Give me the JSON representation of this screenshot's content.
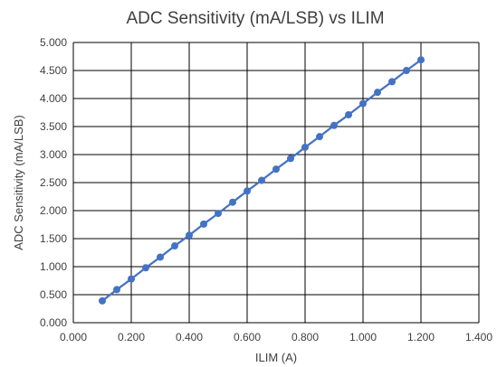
{
  "chart_data": {
    "type": "scatter",
    "title": "ADC Sensitivity (mA/LSB) vs ILIM",
    "xlabel": "ILIM (A)",
    "ylabel": "ADC Sensitivity (mA/LSB)",
    "xlim": [
      0,
      1.4
    ],
    "ylim": [
      0,
      5
    ],
    "x_ticks": [
      "0.000",
      "0.200",
      "0.400",
      "0.600",
      "0.800",
      "1.000",
      "1.200",
      "1.400"
    ],
    "y_ticks": [
      "0.000",
      "0.500",
      "1.000",
      "1.500",
      "2.000",
      "2.500",
      "3.000",
      "3.500",
      "4.000",
      "4.500",
      "5.000"
    ],
    "x_tick_values": [
      0,
      0.2,
      0.4,
      0.6,
      0.8,
      1.0,
      1.2,
      1.4
    ],
    "y_tick_values": [
      0,
      0.5,
      1.0,
      1.5,
      2.0,
      2.5,
      3.0,
      3.5,
      4.0,
      4.5,
      5.0
    ],
    "grid": true,
    "legend": "none",
    "series": [
      {
        "color": "#4472C4",
        "style": "line-with-markers",
        "x": [
          0.1,
          0.15,
          0.2,
          0.25,
          0.3,
          0.35,
          0.4,
          0.45,
          0.5,
          0.55,
          0.6,
          0.65,
          0.7,
          0.75,
          0.8,
          0.85,
          0.9,
          0.95,
          1.0,
          1.05,
          1.1,
          1.15,
          1.2
        ],
        "y": [
          0.39,
          0.59,
          0.78,
          0.98,
          1.17,
          1.37,
          1.56,
          1.76,
          1.95,
          2.15,
          2.35,
          2.54,
          2.74,
          2.93,
          3.13,
          3.32,
          3.52,
          3.71,
          3.91,
          4.11,
          4.3,
          4.5,
          4.69
        ]
      }
    ]
  }
}
